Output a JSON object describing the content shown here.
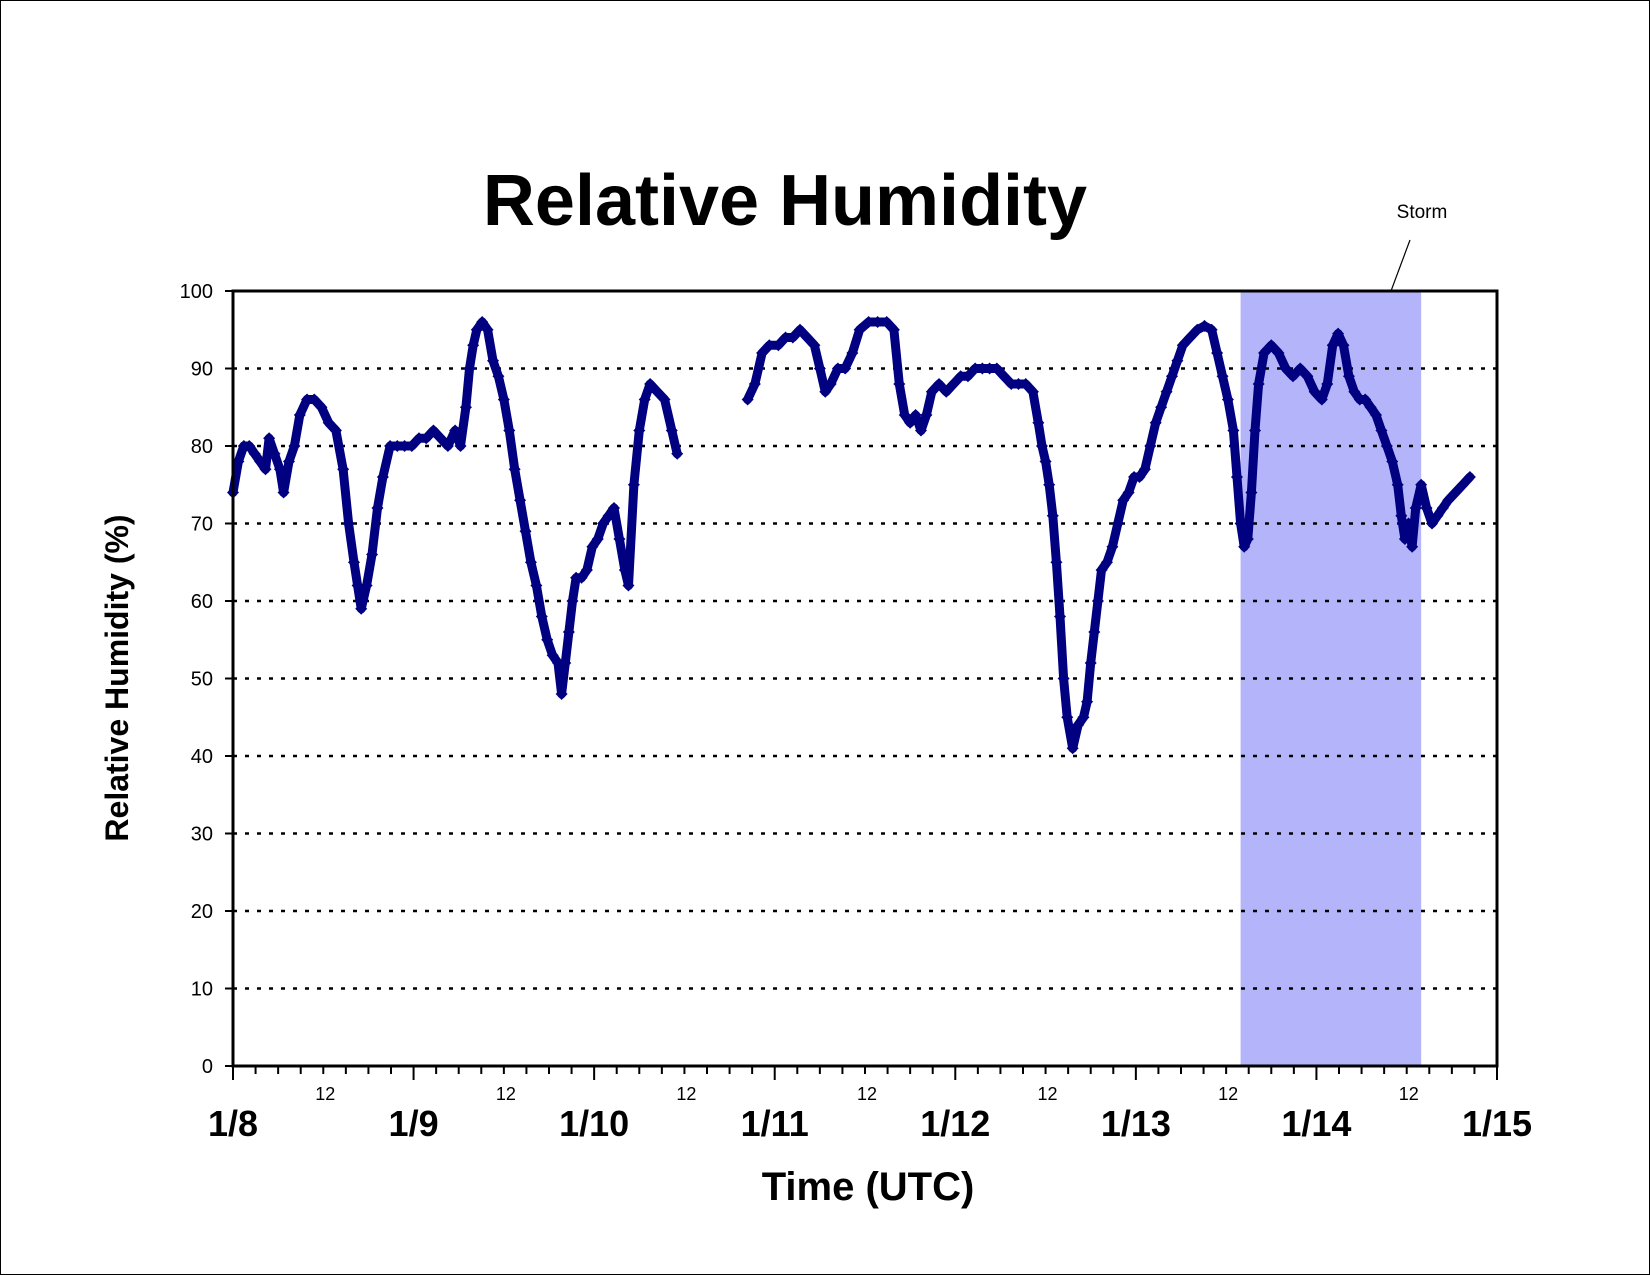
{
  "chart_data": {
    "type": "scatter",
    "title": "Relative Humidity",
    "xlabel": "Time (UTC)",
    "ylabel": "Relative Humidity (%)",
    "ylim": [
      0,
      100
    ],
    "yticks": [
      0,
      10,
      20,
      30,
      40,
      50,
      60,
      70,
      80,
      90,
      100
    ],
    "xlim_days": [
      0,
      7
    ],
    "x_day_labels": [
      "1/8",
      "1/9",
      "1/10",
      "1/11",
      "1/12",
      "1/13",
      "1/14",
      "1/15"
    ],
    "x_midday_label": "12",
    "grid": "horizontal dotted",
    "series": [
      {
        "color": "#000080",
        "marker": "diamond",
        "points": [
          [
            0.0,
            74
          ],
          [
            0.03,
            78
          ],
          [
            0.06,
            80
          ],
          [
            0.09,
            80
          ],
          [
            0.12,
            79
          ],
          [
            0.15,
            78
          ],
          [
            0.18,
            77
          ],
          [
            0.2,
            81
          ],
          [
            0.23,
            79
          ],
          [
            0.26,
            77
          ],
          [
            0.28,
            74
          ],
          [
            0.31,
            78
          ],
          [
            0.34,
            80
          ],
          [
            0.37,
            84
          ],
          [
            0.41,
            86
          ],
          [
            0.45,
            86
          ],
          [
            0.49,
            85
          ],
          [
            0.53,
            83
          ],
          [
            0.57,
            82
          ],
          [
            0.61,
            77
          ],
          [
            0.64,
            70
          ],
          [
            0.67,
            65
          ],
          [
            0.69,
            62
          ],
          [
            0.71,
            59
          ],
          [
            0.74,
            62
          ],
          [
            0.77,
            66
          ],
          [
            0.8,
            72
          ],
          [
            0.83,
            76
          ],
          [
            0.87,
            80
          ],
          [
            0.91,
            80
          ],
          [
            0.95,
            80
          ],
          [
            0.99,
            80
          ],
          [
            1.03,
            81
          ],
          [
            1.07,
            81
          ],
          [
            1.11,
            82
          ],
          [
            1.15,
            81
          ],
          [
            1.19,
            80
          ],
          [
            1.23,
            82
          ],
          [
            1.26,
            80
          ],
          [
            1.29,
            85
          ],
          [
            1.31,
            90
          ],
          [
            1.33,
            93
          ],
          [
            1.35,
            95
          ],
          [
            1.38,
            96
          ],
          [
            1.41,
            95
          ],
          [
            1.44,
            91
          ],
          [
            1.47,
            89
          ],
          [
            1.5,
            86
          ],
          [
            1.53,
            82
          ],
          [
            1.56,
            77
          ],
          [
            1.59,
            73
          ],
          [
            1.62,
            69
          ],
          [
            1.65,
            65
          ],
          [
            1.68,
            62
          ],
          [
            1.71,
            58
          ],
          [
            1.74,
            55
          ],
          [
            1.77,
            53
          ],
          [
            1.8,
            52
          ],
          [
            1.82,
            48
          ],
          [
            1.84,
            52
          ],
          [
            1.86,
            56
          ],
          [
            1.88,
            60
          ],
          [
            1.9,
            63
          ],
          [
            1.93,
            63
          ],
          [
            1.96,
            64
          ],
          [
            1.99,
            67
          ],
          [
            2.02,
            68
          ],
          [
            2.05,
            70
          ],
          [
            2.08,
            71
          ],
          [
            2.11,
            72
          ],
          [
            2.14,
            68
          ],
          [
            2.17,
            64
          ],
          [
            2.19,
            62
          ],
          [
            2.22,
            75
          ],
          [
            2.25,
            82
          ],
          [
            2.28,
            86
          ],
          [
            2.31,
            88
          ],
          [
            2.35,
            87
          ],
          [
            2.39,
            86
          ],
          [
            2.43,
            82
          ],
          [
            2.46,
            79
          ],
          [
            2.85,
            86
          ],
          [
            2.89,
            88
          ],
          [
            2.93,
            92
          ],
          [
            2.97,
            93
          ],
          [
            3.02,
            93
          ],
          [
            3.06,
            94
          ],
          [
            3.1,
            94
          ],
          [
            3.14,
            95
          ],
          [
            3.18,
            94
          ],
          [
            3.22,
            93
          ],
          [
            3.25,
            90
          ],
          [
            3.28,
            87
          ],
          [
            3.31,
            88
          ],
          [
            3.35,
            90
          ],
          [
            3.39,
            90
          ],
          [
            3.43,
            92
          ],
          [
            3.47,
            95
          ],
          [
            3.52,
            96
          ],
          [
            3.57,
            96
          ],
          [
            3.62,
            96
          ],
          [
            3.66,
            95
          ],
          [
            3.69,
            88
          ],
          [
            3.72,
            84
          ],
          [
            3.75,
            83
          ],
          [
            3.78,
            84
          ],
          [
            3.81,
            82
          ],
          [
            3.84,
            84
          ],
          [
            3.87,
            87
          ],
          [
            3.91,
            88
          ],
          [
            3.95,
            87
          ],
          [
            3.99,
            88
          ],
          [
            4.03,
            89
          ],
          [
            4.07,
            89
          ],
          [
            4.11,
            90
          ],
          [
            4.15,
            90
          ],
          [
            4.19,
            90
          ],
          [
            4.23,
            90
          ],
          [
            4.27,
            89
          ],
          [
            4.31,
            88
          ],
          [
            4.35,
            88
          ],
          [
            4.39,
            88
          ],
          [
            4.43,
            87
          ],
          [
            4.46,
            83
          ],
          [
            4.48,
            80
          ],
          [
            4.5,
            78
          ],
          [
            4.52,
            75
          ],
          [
            4.54,
            71
          ],
          [
            4.56,
            65
          ],
          [
            4.58,
            58
          ],
          [
            4.6,
            50
          ],
          [
            4.62,
            45
          ],
          [
            4.65,
            41
          ],
          [
            4.68,
            44
          ],
          [
            4.71,
            45
          ],
          [
            4.73,
            47
          ],
          [
            4.75,
            52
          ],
          [
            4.77,
            56
          ],
          [
            4.79,
            60
          ],
          [
            4.81,
            64
          ],
          [
            4.84,
            65
          ],
          [
            4.87,
            67
          ],
          [
            4.9,
            70
          ],
          [
            4.93,
            73
          ],
          [
            4.96,
            74
          ],
          [
            4.99,
            76
          ],
          [
            5.02,
            76
          ],
          [
            5.05,
            77
          ],
          [
            5.08,
            80
          ],
          [
            5.11,
            83
          ],
          [
            5.14,
            85
          ],
          [
            5.17,
            87
          ],
          [
            5.2,
            89
          ],
          [
            5.23,
            91
          ],
          [
            5.26,
            93
          ],
          [
            5.3,
            94
          ],
          [
            5.34,
            95
          ],
          [
            5.38,
            95.5
          ],
          [
            5.42,
            95
          ],
          [
            5.45,
            92
          ],
          [
            5.48,
            89
          ],
          [
            5.51,
            86
          ],
          [
            5.54,
            82
          ],
          [
            5.56,
            76
          ],
          [
            5.58,
            70
          ],
          [
            5.6,
            67
          ],
          [
            5.62,
            68
          ],
          [
            5.64,
            74
          ],
          [
            5.66,
            82
          ],
          [
            5.68,
            88
          ],
          [
            5.71,
            92
          ],
          [
            5.75,
            93
          ],
          [
            5.79,
            92
          ],
          [
            5.83,
            90
          ],
          [
            5.87,
            89
          ],
          [
            5.91,
            90
          ],
          [
            5.95,
            89
          ],
          [
            5.99,
            87
          ],
          [
            6.03,
            86
          ],
          [
            6.06,
            88
          ],
          [
            6.09,
            93
          ],
          [
            6.12,
            94.5
          ],
          [
            6.15,
            93
          ],
          [
            6.18,
            89
          ],
          [
            6.21,
            87
          ],
          [
            6.24,
            86
          ],
          [
            6.27,
            86
          ],
          [
            6.3,
            85
          ],
          [
            6.33,
            84
          ],
          [
            6.36,
            82
          ],
          [
            6.39,
            80
          ],
          [
            6.42,
            78
          ],
          [
            6.45,
            75
          ],
          [
            6.47,
            71
          ],
          [
            6.49,
            68
          ],
          [
            6.51,
            70
          ],
          [
            6.53,
            67
          ],
          [
            6.55,
            72
          ],
          [
            6.58,
            75
          ],
          [
            6.61,
            72
          ],
          [
            6.64,
            70
          ],
          [
            6.67,
            71
          ],
          [
            6.7,
            72
          ],
          [
            6.73,
            73
          ],
          [
            6.77,
            74
          ],
          [
            6.81,
            75
          ],
          [
            6.85,
            76
          ]
        ]
      }
    ],
    "shaded_region": {
      "label": "Storm",
      "x_start": 5.58,
      "x_end": 6.58,
      "color": "#b4b4fa"
    }
  }
}
